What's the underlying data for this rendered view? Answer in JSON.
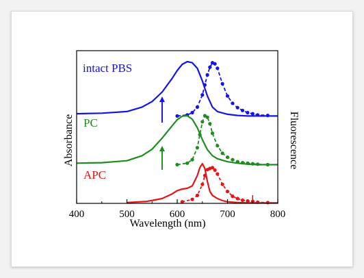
{
  "chart_data": {
    "type": "line",
    "xlabel": "Wavelength (nm)",
    "ylabel_left": "Absorbance",
    "ylabel_right": "Fluorescence",
    "xlim": [
      400,
      800
    ],
    "xticks": [
      "400",
      "500",
      "600",
      "700",
      "800"
    ],
    "series": [
      {
        "name": "intact PBS",
        "color": "#1414e6",
        "absorbance": {
          "x": [
            400,
            450,
            500,
            530,
            550,
            570,
            590,
            600,
            610,
            620,
            630,
            640,
            650,
            660,
            670,
            680,
            700,
            720,
            740,
            760,
            780,
            800
          ],
          "y": [
            0.06,
            0.07,
            0.1,
            0.18,
            0.28,
            0.45,
            0.7,
            0.84,
            0.95,
            1.0,
            0.98,
            0.88,
            0.65,
            0.38,
            0.18,
            0.1,
            0.05,
            0.03,
            0.02,
            0.02,
            0.02,
            0.02
          ]
        },
        "fluorescence": {
          "x": [
            600,
            620,
            630,
            640,
            650,
            655,
            660,
            665,
            670,
            675,
            680,
            690,
            700,
            710,
            720,
            730,
            740,
            750,
            760,
            780
          ],
          "y": [
            0.02,
            0.04,
            0.08,
            0.18,
            0.4,
            0.58,
            0.76,
            0.9,
            0.98,
            0.96,
            0.88,
            0.6,
            0.38,
            0.25,
            0.17,
            0.12,
            0.08,
            0.06,
            0.04,
            0.03
          ]
        }
      },
      {
        "name": "PC",
        "color": "#1e8c1e",
        "absorbance": {
          "x": [
            400,
            450,
            500,
            530,
            550,
            570,
            590,
            600,
            610,
            620,
            630,
            640,
            650,
            660,
            670,
            680,
            700,
            720,
            740,
            760,
            780,
            800
          ],
          "y": [
            0.05,
            0.06,
            0.1,
            0.2,
            0.33,
            0.55,
            0.8,
            0.92,
            0.99,
            1.0,
            0.93,
            0.76,
            0.52,
            0.32,
            0.2,
            0.14,
            0.08,
            0.05,
            0.03,
            0.02,
            0.02,
            0.02
          ]
        },
        "fluorescence": {
          "x": [
            600,
            620,
            630,
            640,
            645,
            650,
            655,
            660,
            665,
            670,
            680,
            690,
            700,
            710,
            720,
            730,
            740,
            750,
            760,
            780
          ],
          "y": [
            0.02,
            0.05,
            0.12,
            0.36,
            0.62,
            0.88,
            1.0,
            0.97,
            0.84,
            0.65,
            0.4,
            0.25,
            0.17,
            0.12,
            0.08,
            0.06,
            0.05,
            0.04,
            0.03,
            0.02
          ]
        }
      },
      {
        "name": "APC",
        "color": "#e61414",
        "absorbance": {
          "x": [
            500,
            540,
            570,
            590,
            600,
            610,
            620,
            630,
            640,
            645,
            650,
            655,
            660,
            665,
            670,
            680,
            690,
            700,
            720,
            740,
            760,
            780,
            800
          ],
          "y": [
            0.02,
            0.05,
            0.12,
            0.24,
            0.32,
            0.36,
            0.38,
            0.44,
            0.7,
            0.9,
            1.0,
            0.88,
            0.55,
            0.3,
            0.2,
            0.12,
            0.07,
            0.04,
            0.02,
            0.01,
            0.01,
            0.01,
            0.01
          ]
        },
        "fluorescence": {
          "x": [
            610,
            630,
            640,
            650,
            655,
            660,
            665,
            670,
            675,
            680,
            690,
            700,
            710,
            720,
            730,
            740,
            750,
            760,
            780
          ],
          "y": [
            0.04,
            0.1,
            0.2,
            0.48,
            0.7,
            0.85,
            0.88,
            0.9,
            0.84,
            0.74,
            0.48,
            0.3,
            0.18,
            0.12,
            0.08,
            0.06,
            0.05,
            0.03,
            0.02
          ]
        }
      }
    ],
    "arrows_at_nm": [
      570,
      570
    ],
    "marker_at_nm": 750
  }
}
